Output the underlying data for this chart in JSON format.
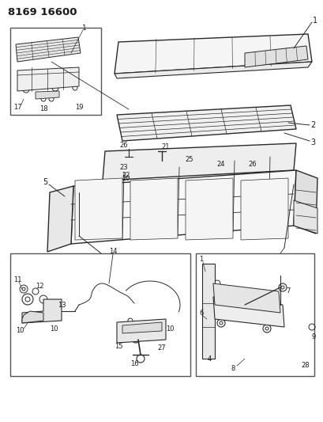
{
  "title": "8169 16600",
  "bg_color": "#ffffff",
  "title_fontsize": 9,
  "title_weight": "bold",
  "fig_width": 4.1,
  "fig_height": 5.33,
  "dpi": 100,
  "lc": "#2a2a2a",
  "mc": "#1a1a1a",
  "blc": "#444444",
  "label_fs": 6.5
}
